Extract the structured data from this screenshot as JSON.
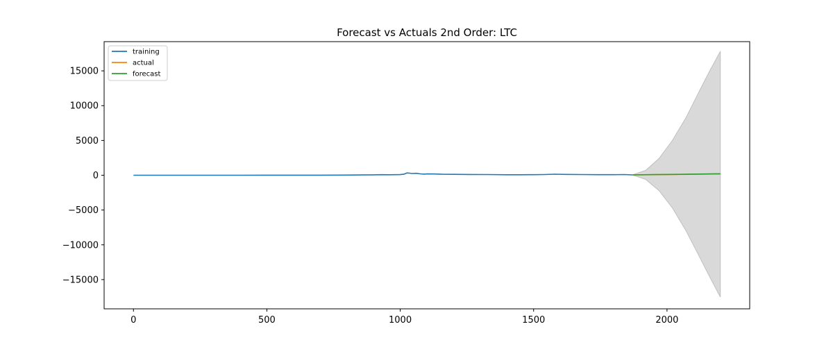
{
  "chart_data": {
    "type": "line",
    "title": "Forecast vs Actuals 2nd Order: LTC",
    "xlabel": "",
    "ylabel": "",
    "xlim": [
      -110,
      2310
    ],
    "ylim": [
      -19200,
      19200
    ],
    "xticks": [
      0,
      500,
      1000,
      1500,
      2000
    ],
    "yticks": [
      -15000,
      -10000,
      -5000,
      0,
      5000,
      10000,
      15000
    ],
    "grid": false,
    "legend_position": "top-left",
    "series": [
      {
        "name": "training",
        "color": "#1f77b4",
        "x": [
          0,
          100,
          200,
          300,
          400,
          500,
          600,
          700,
          780,
          850,
          900,
          930,
          960,
          1000,
          1015,
          1025,
          1035,
          1045,
          1060,
          1075,
          1090,
          1100,
          1130,
          1160,
          1200,
          1260,
          1330,
          1400,
          1450,
          1500,
          1540,
          1580,
          1620,
          1680,
          1740,
          1800,
          1840,
          1870
        ],
        "values": [
          4,
          4,
          4,
          4,
          4,
          5,
          6,
          8,
          15,
          40,
          55,
          80,
          65,
          90,
          160,
          330,
          300,
          250,
          280,
          200,
          160,
          190,
          180,
          140,
          130,
          110,
          100,
          70,
          65,
          80,
          100,
          150,
          120,
          100,
          80,
          75,
          95,
          50
        ]
      },
      {
        "name": "actual",
        "color": "#ff7f0e",
        "x": [
          1870,
          1950,
          2050,
          2120,
          2200
        ],
        "values": [
          50,
          80,
          120,
          160,
          190
        ]
      },
      {
        "name": "forecast",
        "color": "#2ca02c",
        "x": [
          1870,
          1950,
          2050,
          2120,
          2200
        ],
        "values": [
          50,
          85,
          130,
          170,
          210
        ]
      }
    ],
    "confidence_band": {
      "color": "#d9d9d9",
      "x": [
        1870,
        1920,
        1970,
        2020,
        2070,
        2120,
        2160,
        2200
      ],
      "upper": [
        50,
        700,
        2400,
        5000,
        8200,
        12000,
        15000,
        17800
      ],
      "lower": [
        50,
        -600,
        -2200,
        -4700,
        -7900,
        -11600,
        -14600,
        -17500
      ]
    }
  }
}
